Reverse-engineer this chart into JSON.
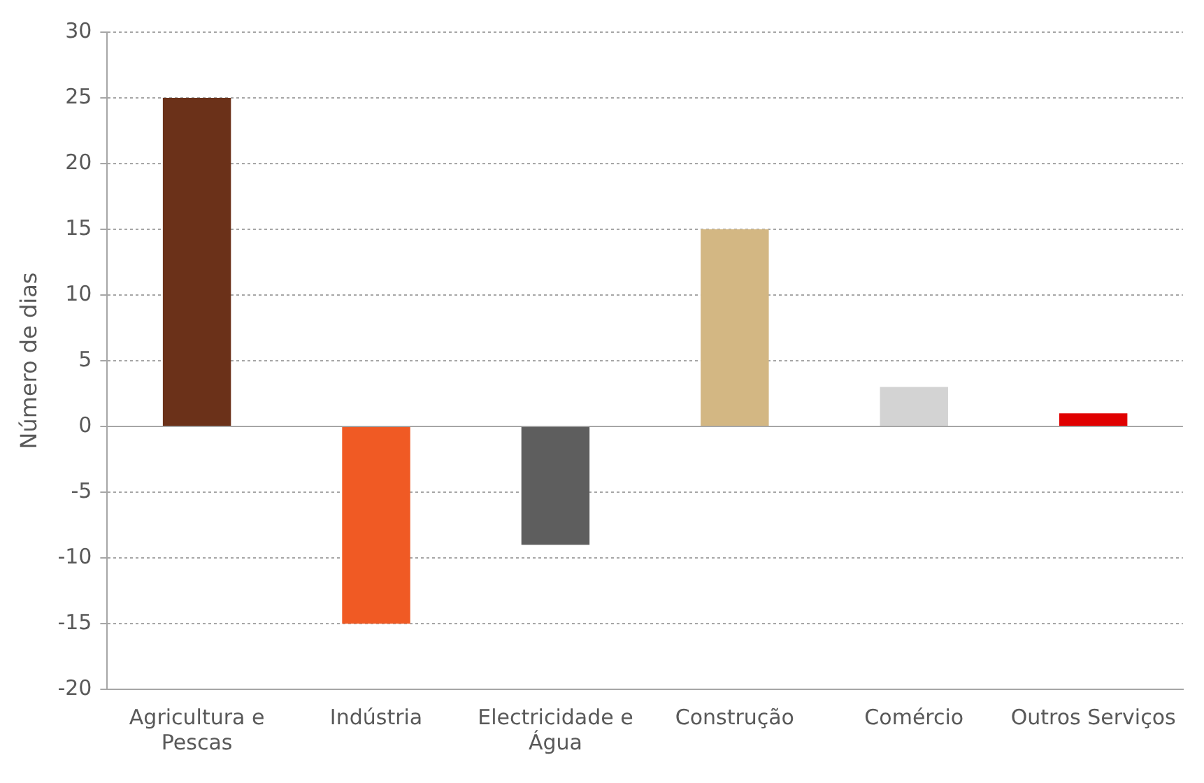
{
  "chart_data": {
    "type": "bar",
    "ylabel": "Número de dias",
    "categories": [
      "Agricultura e Pescas",
      "Indústria",
      "Electricidade e Água",
      "Construção",
      "Comércio",
      "Outros Serviços"
    ],
    "values": [
      25,
      -15,
      -9,
      15,
      3,
      1
    ],
    "colors": [
      "#6b3119",
      "#f05a24",
      "#5e5e5e",
      "#d3b783",
      "#d3d3d3",
      "#e00000"
    ],
    "ylim": [
      -20,
      30
    ],
    "yticks": [
      -20,
      -15,
      -10,
      -5,
      0,
      5,
      10,
      15,
      20,
      25,
      30
    ],
    "grid": "y",
    "legend": false
  }
}
